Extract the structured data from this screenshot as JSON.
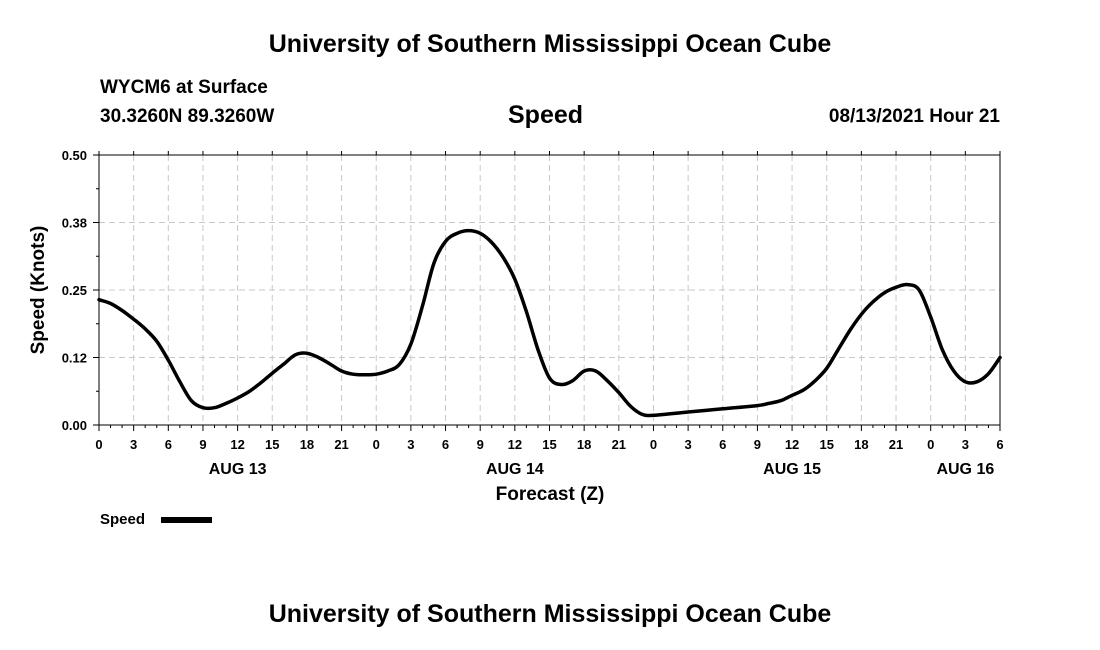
{
  "header": {
    "title": "University of Southern Mississippi Ocean Cube",
    "station": "WYCM6 at Surface",
    "coords": "30.3260N  89.3260W",
    "plot_title": "Speed",
    "datetime": "08/13/2021 Hour 21"
  },
  "footer": {
    "title": "University of Southern Mississippi Ocean Cube"
  },
  "chart_data": {
    "type": "line",
    "title": "Speed",
    "xlabel": "Forecast (Z)",
    "ylabel": "Speed (Knots)",
    "xlim": [
      0,
      78
    ],
    "ylim": [
      0,
      0.5
    ],
    "y_ticks": [
      {
        "value": 0,
        "label": "0.00"
      },
      {
        "value": 0.125,
        "label": "0.12"
      },
      {
        "value": 0.25,
        "label": "0.25"
      },
      {
        "value": 0.375,
        "label": "0.38"
      },
      {
        "value": 0.5,
        "label": "0.50"
      }
    ],
    "x_ticks": [
      {
        "value": 0,
        "label": "0"
      },
      {
        "value": 3,
        "label": "3"
      },
      {
        "value": 6,
        "label": "6"
      },
      {
        "value": 9,
        "label": "9"
      },
      {
        "value": 12,
        "label": "12"
      },
      {
        "value": 15,
        "label": "15"
      },
      {
        "value": 18,
        "label": "18"
      },
      {
        "value": 21,
        "label": "21"
      },
      {
        "value": 24,
        "label": "0"
      },
      {
        "value": 27,
        "label": "3"
      },
      {
        "value": 30,
        "label": "6"
      },
      {
        "value": 33,
        "label": "9"
      },
      {
        "value": 36,
        "label": "12"
      },
      {
        "value": 39,
        "label": "15"
      },
      {
        "value": 42,
        "label": "18"
      },
      {
        "value": 45,
        "label": "21"
      },
      {
        "value": 48,
        "label": "0"
      },
      {
        "value": 51,
        "label": "3"
      },
      {
        "value": 54,
        "label": "6"
      },
      {
        "value": 57,
        "label": "9"
      },
      {
        "value": 60,
        "label": "12"
      },
      {
        "value": 63,
        "label": "15"
      },
      {
        "value": 66,
        "label": "18"
      },
      {
        "value": 69,
        "label": "21"
      },
      {
        "value": 72,
        "label": "0"
      },
      {
        "value": 75,
        "label": "3"
      },
      {
        "value": 78,
        "label": "6"
      }
    ],
    "date_labels": [
      {
        "value": 12,
        "label": "AUG 13"
      },
      {
        "value": 36,
        "label": "AUG 14"
      },
      {
        "value": 60,
        "label": "AUG 15"
      },
      {
        "value": 75,
        "label": "AUG 16"
      }
    ],
    "grid": true,
    "legend": "bottom-left",
    "series": [
      {
        "name": "Speed",
        "x": [
          0,
          1,
          2,
          3,
          4,
          5,
          6,
          7,
          8,
          9,
          10,
          11,
          12,
          13,
          14,
          15,
          16,
          17,
          18,
          19,
          20,
          21,
          22,
          23,
          24,
          25,
          26,
          27,
          28,
          29,
          30,
          31,
          32,
          33,
          34,
          35,
          36,
          37,
          38,
          39,
          40,
          41,
          42,
          43,
          44,
          45,
          46,
          47,
          48,
          51,
          54,
          57,
          58,
          59,
          60,
          61,
          62,
          63,
          64,
          65,
          66,
          67,
          68,
          69,
          70,
          71,
          72,
          73,
          74,
          75,
          76,
          77,
          78
        ],
        "values": [
          0.232,
          0.225,
          0.212,
          0.196,
          0.178,
          0.155,
          0.12,
          0.08,
          0.045,
          0.032,
          0.032,
          0.04,
          0.05,
          0.062,
          0.078,
          0.096,
          0.113,
          0.13,
          0.133,
          0.125,
          0.113,
          0.1,
          0.094,
          0.093,
          0.094,
          0.1,
          0.112,
          0.15,
          0.22,
          0.3,
          0.34,
          0.355,
          0.36,
          0.355,
          0.338,
          0.31,
          0.27,
          0.21,
          0.14,
          0.087,
          0.075,
          0.082,
          0.1,
          0.1,
          0.082,
          0.06,
          0.035,
          0.02,
          0.018,
          0.024,
          0.03,
          0.036,
          0.04,
          0.045,
          0.055,
          0.065,
          0.082,
          0.105,
          0.14,
          0.175,
          0.205,
          0.228,
          0.245,
          0.255,
          0.26,
          0.25,
          0.2,
          0.14,
          0.1,
          0.08,
          0.08,
          0.095,
          0.125
        ]
      }
    ]
  }
}
